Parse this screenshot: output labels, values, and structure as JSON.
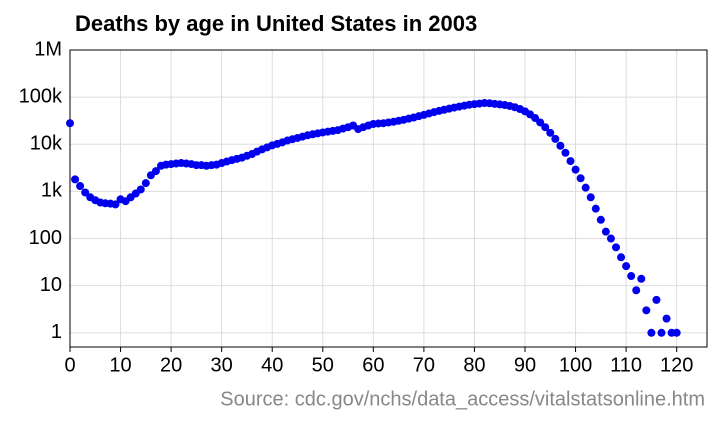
{
  "chart_data": {
    "type": "scatter",
    "title": "Deaths by age in United States in 2003",
    "annotation": "Source: cdc.gov/nchs/data_access/vitalstatsonline.htm",
    "color": "#0000ee",
    "log_y": true,
    "grid": true,
    "xlim": [
      0,
      126
    ],
    "ylim": [
      0.5,
      1000000
    ],
    "xticks": [
      0,
      10,
      20,
      30,
      40,
      50,
      60,
      70,
      80,
      90,
      100,
      110,
      120
    ],
    "yticks": [
      1,
      10,
      100,
      {
        "value": 1000,
        "label": "1k"
      },
      {
        "value": 10000,
        "label": "10k"
      },
      {
        "value": 100000,
        "label": "100k"
      },
      {
        "value": 1000000,
        "label": "1M"
      }
    ],
    "x": [
      0,
      1,
      2,
      3,
      4,
      5,
      6,
      7,
      8,
      9,
      10,
      11,
      12,
      13,
      14,
      15,
      16,
      17,
      18,
      19,
      20,
      21,
      22,
      23,
      24,
      25,
      26,
      27,
      28,
      29,
      30,
      31,
      32,
      33,
      34,
      35,
      36,
      37,
      38,
      39,
      40,
      41,
      42,
      43,
      44,
      45,
      46,
      47,
      48,
      49,
      50,
      51,
      52,
      53,
      54,
      55,
      56,
      57,
      58,
      59,
      60,
      61,
      62,
      63,
      64,
      65,
      66,
      67,
      68,
      69,
      70,
      71,
      72,
      73,
      74,
      75,
      76,
      77,
      78,
      79,
      80,
      81,
      82,
      83,
      84,
      85,
      86,
      87,
      88,
      89,
      90,
      91,
      92,
      93,
      94,
      95,
      96,
      97,
      98,
      99,
      100,
      101,
      102,
      103,
      104,
      105,
      106,
      107,
      108,
      109,
      110,
      111,
      112,
      113,
      114,
      115,
      116,
      117,
      118,
      119,
      120
    ],
    "values": [
      28000,
      1800,
      1300,
      950,
      750,
      650,
      580,
      560,
      550,
      530,
      680,
      620,
      750,
      900,
      1100,
      1500,
      2200,
      2700,
      3500,
      3700,
      3800,
      3900,
      4000,
      3900,
      3800,
      3600,
      3600,
      3500,
      3600,
      3700,
      4000,
      4300,
      4600,
      4900,
      5200,
      5700,
      6200,
      7000,
      7800,
      8600,
      9500,
      10200,
      11000,
      12000,
      12800,
      13600,
      14500,
      15500,
      16300,
      17000,
      17800,
      18500,
      19200,
      20000,
      21500,
      23000,
      25000,
      21000,
      23000,
      25000,
      27000,
      27500,
      28000,
      29000,
      30000,
      31500,
      33000,
      35000,
      37000,
      39500,
      42000,
      45000,
      48000,
      51000,
      54000,
      57000,
      60000,
      63000,
      66000,
      69000,
      71000,
      73000,
      75000,
      74000,
      72000,
      70000,
      68000,
      65000,
      61000,
      56000,
      50000,
      43000,
      36000,
      29000,
      23000,
      17500,
      13000,
      9300,
      6600,
      4400,
      2900,
      1900,
      1200,
      750,
      430,
      250,
      140,
      100,
      65,
      40,
      26,
      16,
      8,
      14,
      3,
      1,
      5,
      1,
      2,
      1,
      1
    ]
  }
}
